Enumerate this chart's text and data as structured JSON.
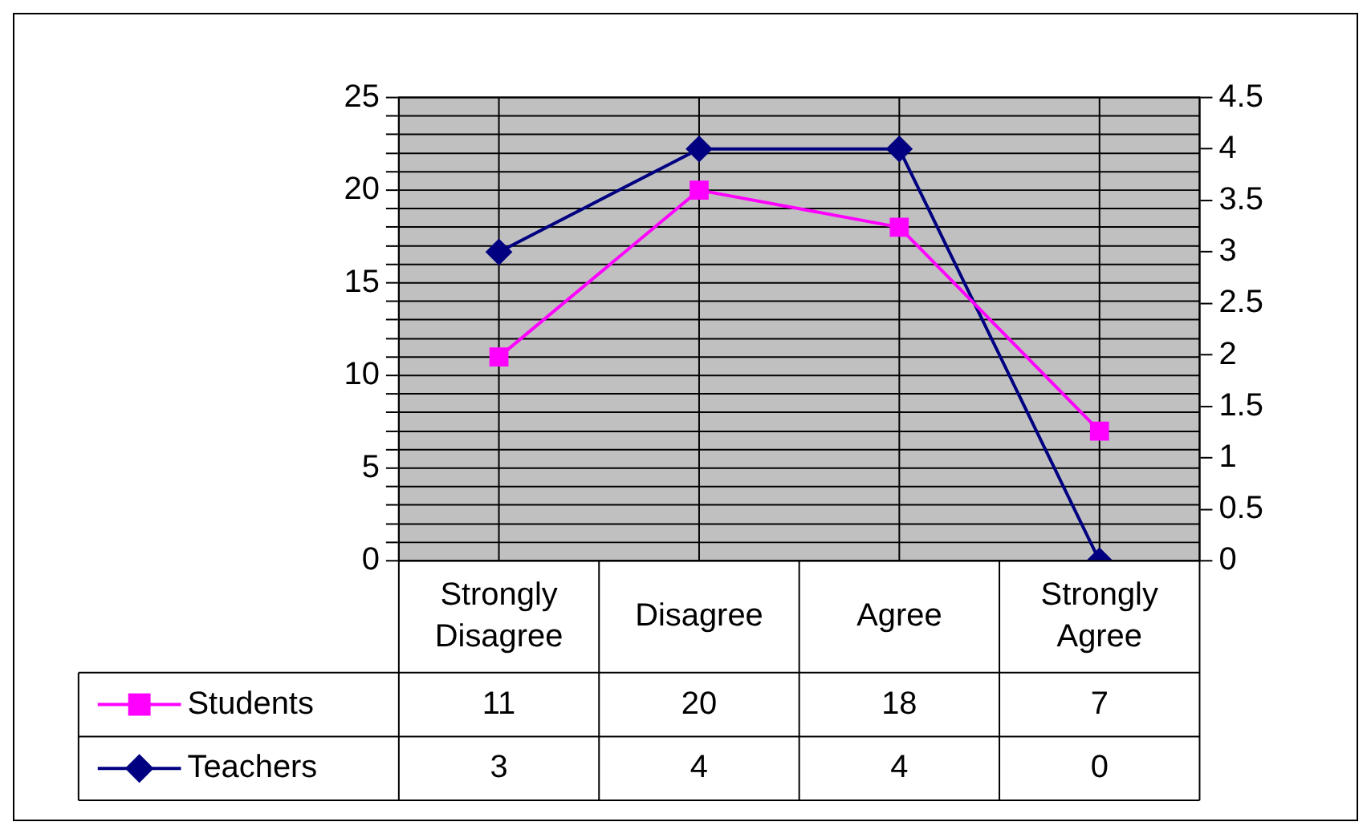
{
  "chart_data": {
    "type": "line",
    "categories": [
      "Strongly Disagree",
      "Disagree",
      "Agree",
      "Strongly Agree"
    ],
    "series": [
      {
        "name": "Students",
        "color": "#ff00ff",
        "values": [
          11,
          20,
          18,
          7
        ],
        "marker": "square"
      },
      {
        "name": "Teachers",
        "color": "#000080",
        "values": [
          3,
          4,
          4,
          0
        ],
        "axis": "y2",
        "marker": "diamond"
      }
    ],
    "ylim": [
      0,
      25
    ],
    "yticks": [
      0,
      {
        "value": 1,
        "label": null
      },
      {
        "value": 2,
        "label": null
      },
      {
        "value": 3,
        "label": null
      },
      {
        "value": 4,
        "label": null
      },
      5,
      {
        "value": 6,
        "label": null
      },
      {
        "value": 7,
        "label": null
      },
      {
        "value": 8,
        "label": null
      },
      {
        "value": 9,
        "label": null
      },
      10,
      {
        "value": 11,
        "label": null
      },
      {
        "value": 12,
        "label": null
      },
      {
        "value": 13,
        "label": null
      },
      {
        "value": 14,
        "label": null
      },
      15,
      {
        "value": 16,
        "label": null
      },
      {
        "value": 17,
        "label": null
      },
      {
        "value": 18,
        "label": null
      },
      {
        "value": 19,
        "label": null
      },
      20,
      {
        "value": 21,
        "label": null
      },
      {
        "value": 22,
        "label": null
      },
      {
        "value": 23,
        "label": null
      },
      {
        "value": 24,
        "label": null
      },
      25
    ],
    "y2lim": [
      0,
      4.5
    ],
    "y2ticks": [
      0,
      0.5,
      1,
      1.5,
      2,
      2.5,
      3,
      3.5,
      4,
      4.5
    ],
    "grid": true,
    "legend": "bottom",
    "data_labels": true,
    "line_style": "solid"
  }
}
